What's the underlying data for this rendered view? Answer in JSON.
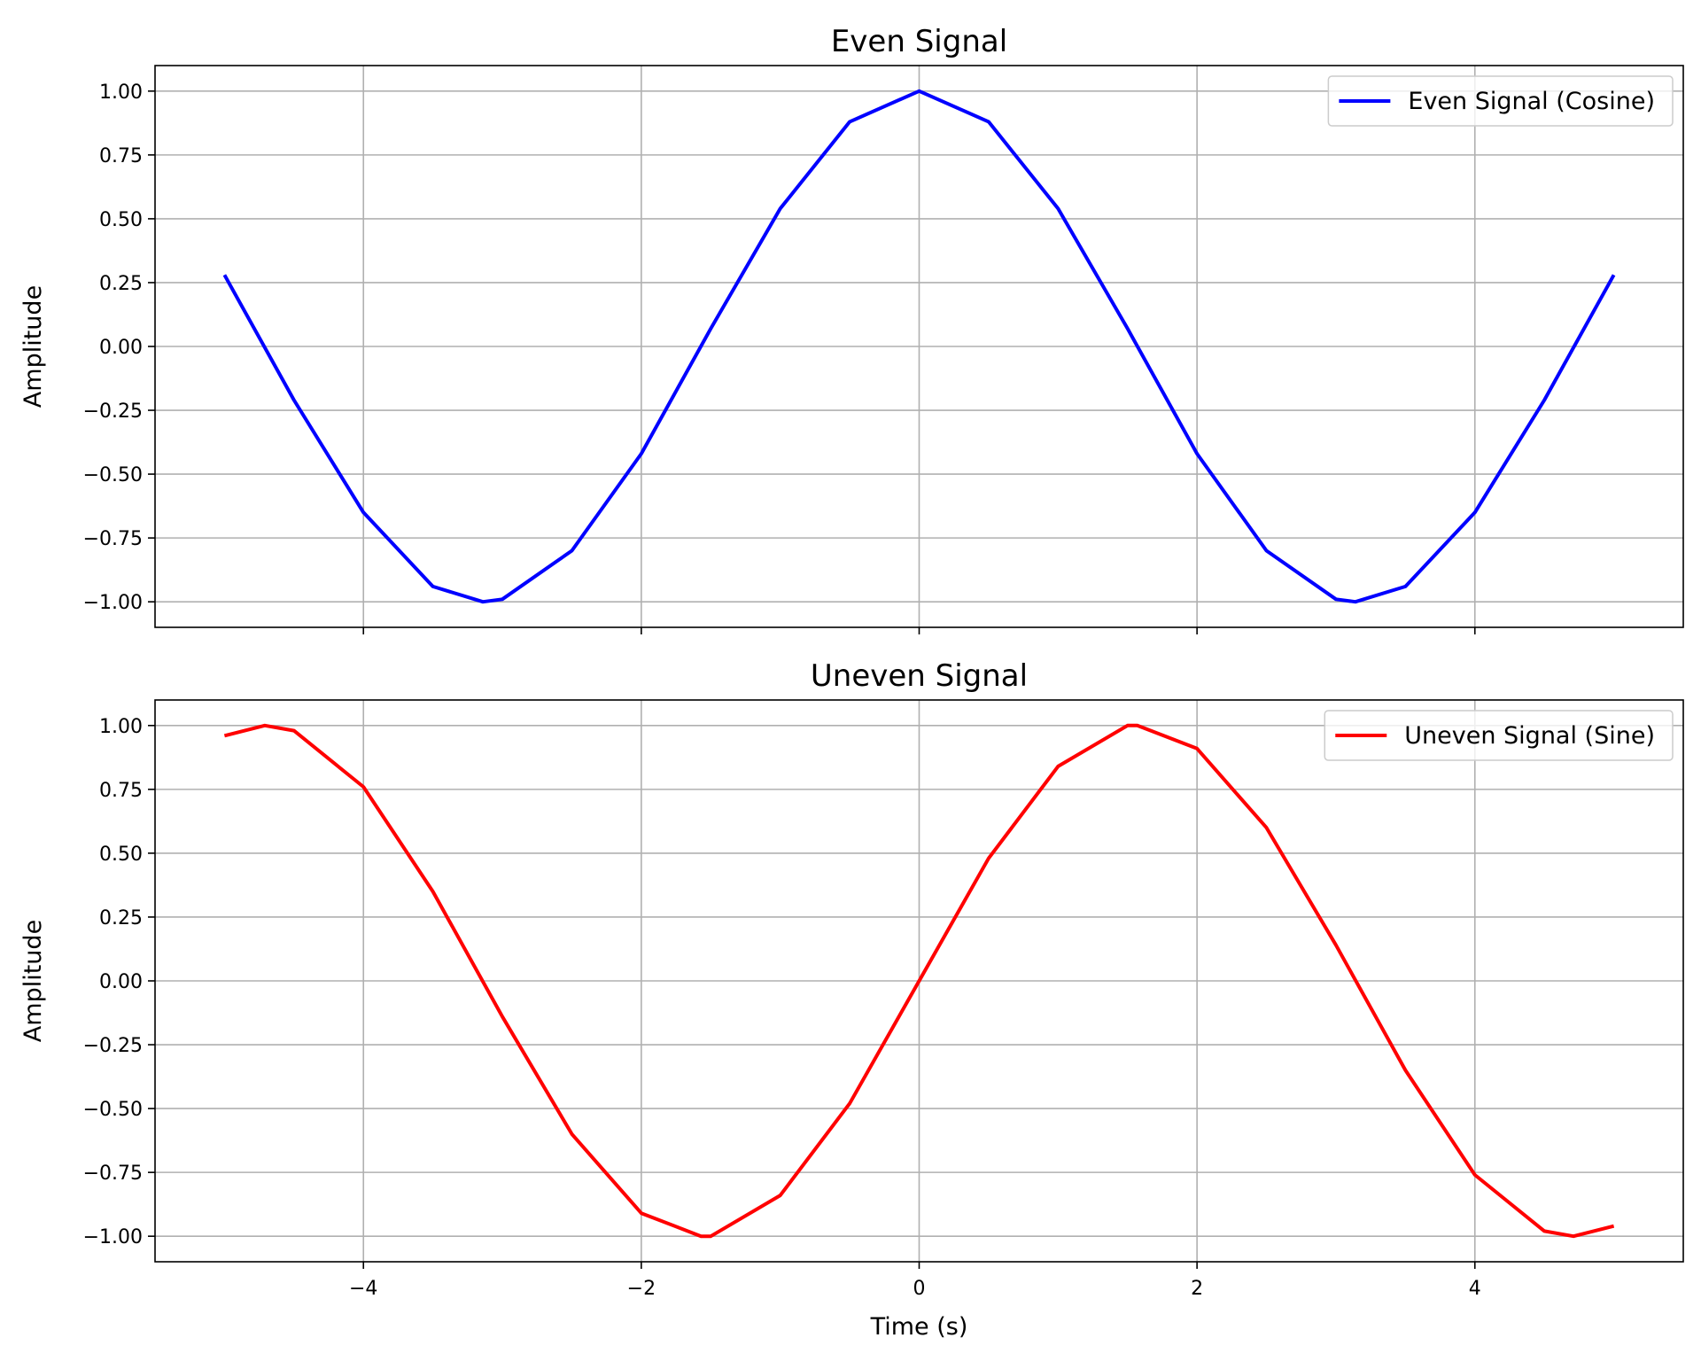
{
  "chart_data": [
    {
      "type": "line",
      "title": "Even Signal",
      "xlabel": "",
      "ylabel": "Amplitude",
      "xlim": [
        -5.5,
        5.5
      ],
      "ylim": [
        -1.1,
        1.1
      ],
      "xticks": [
        -4,
        -2,
        0,
        2,
        4
      ],
      "xtick_labels": [
        "",
        "",
        "",
        "",
        ""
      ],
      "yticks": [
        1.0,
        0.75,
        0.5,
        0.25,
        0.0,
        -0.25,
        -0.5,
        -0.75,
        -1.0
      ],
      "ytick_labels": [
        "1.00",
        "0.75",
        "0.50",
        "0.25",
        "0.00",
        "−0.25",
        "−0.50",
        "−0.75",
        "−1.00"
      ],
      "grid": true,
      "legend_position": "top-right",
      "series": [
        {
          "name": "Even Signal (Cosine)",
          "color": "#0000ff",
          "x": [
            -5.0,
            -4.5,
            -4.0,
            -3.5,
            -3.14,
            -3.0,
            -2.5,
            -2.0,
            -1.5,
            -1.0,
            -0.5,
            0.0,
            0.5,
            1.0,
            1.5,
            2.0,
            2.5,
            3.0,
            3.14,
            3.5,
            4.0,
            4.5,
            5.0
          ],
          "y": [
            0.28,
            -0.21,
            -0.65,
            -0.94,
            -1.0,
            -0.99,
            -0.8,
            -0.42,
            0.07,
            0.54,
            0.88,
            1.0,
            0.88,
            0.54,
            0.07,
            -0.42,
            -0.8,
            -0.99,
            -1.0,
            -0.94,
            -0.65,
            -0.21,
            0.28
          ]
        }
      ]
    },
    {
      "type": "line",
      "title": "Uneven Signal",
      "xlabel": "Time (s)",
      "ylabel": "Amplitude",
      "xlim": [
        -5.5,
        5.5
      ],
      "ylim": [
        -1.1,
        1.1
      ],
      "xticks": [
        -4,
        -2,
        0,
        2,
        4
      ],
      "xtick_labels": [
        "−4",
        "−2",
        "0",
        "2",
        "4"
      ],
      "yticks": [
        1.0,
        0.75,
        0.5,
        0.25,
        0.0,
        -0.25,
        -0.5,
        -0.75,
        -1.0
      ],
      "ytick_labels": [
        "1.00",
        "0.75",
        "0.50",
        "0.25",
        "0.00",
        "−0.25",
        "−0.50",
        "−0.75",
        "−1.00"
      ],
      "grid": true,
      "legend_position": "top-right",
      "series": [
        {
          "name": "Uneven Signal (Sine)",
          "color": "#ff0000",
          "x": [
            -5.0,
            -4.71,
            -4.5,
            -4.0,
            -3.5,
            -3.0,
            -2.5,
            -2.0,
            -1.57,
            -1.5,
            -1.0,
            -0.5,
            0.0,
            0.5,
            1.0,
            1.5,
            1.57,
            2.0,
            2.5,
            3.0,
            3.5,
            4.0,
            4.5,
            4.71,
            5.0
          ],
          "y": [
            0.96,
            1.0,
            0.98,
            0.76,
            0.35,
            -0.14,
            -0.6,
            -0.91,
            -1.0,
            -1.0,
            -0.84,
            -0.48,
            0.0,
            0.48,
            0.84,
            1.0,
            1.0,
            0.91,
            0.6,
            0.14,
            -0.35,
            -0.76,
            -0.98,
            -1.0,
            -0.96
          ]
        }
      ]
    }
  ]
}
